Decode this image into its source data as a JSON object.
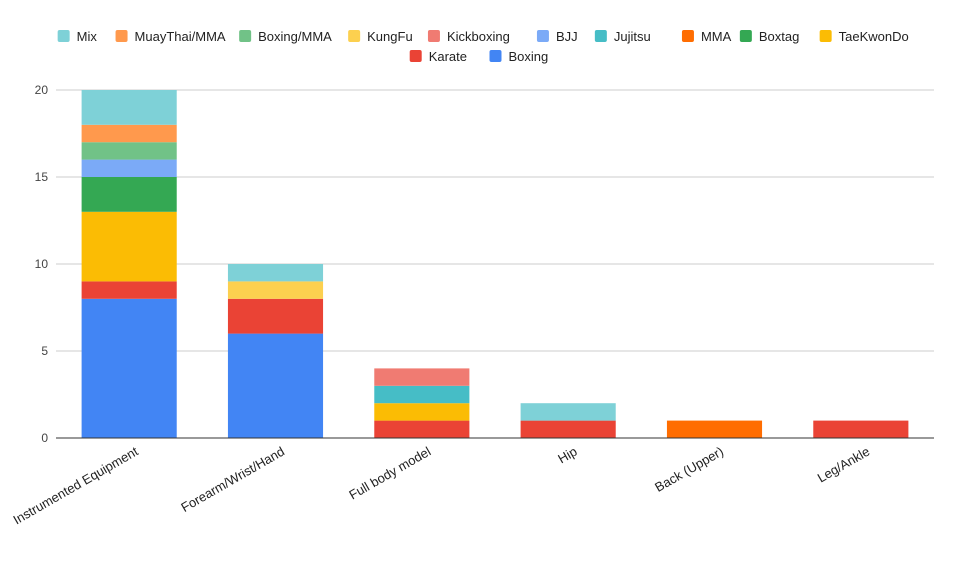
{
  "chart_data": {
    "type": "bar",
    "stacked": true,
    "title": "",
    "xlabel": "",
    "ylabel": "",
    "ylim": [
      0,
      20
    ],
    "yticks": [
      0,
      5,
      10,
      15,
      20
    ],
    "grid": true,
    "legend_position": "top",
    "categories": [
      "Instrumented Equipment",
      "Forearm/Wrist/Hand",
      "Full body model",
      "Hip",
      "Back (Upper)",
      "Leg/Ankle"
    ],
    "series": [
      {
        "name": "Boxing",
        "color": "#4285F4",
        "values": [
          8,
          6,
          0,
          0,
          0,
          0
        ]
      },
      {
        "name": "Karate",
        "color": "#EA4335",
        "values": [
          1,
          2,
          1,
          1,
          0,
          1
        ]
      },
      {
        "name": "TaeKwonDo",
        "color": "#FBBC04",
        "values": [
          4,
          0,
          1,
          0,
          0,
          0
        ]
      },
      {
        "name": "Boxtag",
        "color": "#34A853",
        "values": [
          2,
          0,
          0,
          0,
          0,
          0
        ]
      },
      {
        "name": "MMA",
        "color": "#FF6D01",
        "values": [
          0,
          0,
          0,
          0,
          1,
          0
        ]
      },
      {
        "name": "Jujitsu",
        "color": "#46BDC6",
        "values": [
          0,
          0,
          1,
          0,
          0,
          0
        ]
      },
      {
        "name": "BJJ",
        "color": "#7BAAF7",
        "values": [
          1,
          0,
          0,
          0,
          0,
          0
        ]
      },
      {
        "name": "Kickboxing",
        "color": "#F07B72",
        "values": [
          0,
          0,
          1,
          0,
          0,
          0
        ]
      },
      {
        "name": "KungFu",
        "color": "#FCD04F",
        "values": [
          0,
          1,
          0,
          0,
          0,
          0
        ]
      },
      {
        "name": "Boxing/MMA",
        "color": "#71C287",
        "values": [
          1,
          0,
          0,
          0,
          0,
          0
        ]
      },
      {
        "name": "MuayThai/MMA",
        "color": "#FF994D",
        "values": [
          1,
          0,
          0,
          0,
          0,
          0
        ]
      },
      {
        "name": "Mix",
        "color": "#7ED1D7",
        "values": [
          2,
          1,
          0,
          1,
          0,
          0
        ]
      }
    ],
    "legend_order": [
      "Mix",
      "MuayThai/MMA",
      "Boxing/MMA",
      "KungFu",
      "Kickboxing",
      "BJJ",
      "Jujitsu",
      "MMA",
      "Boxtag",
      "TaeKwonDo",
      "Karate",
      "Boxing"
    ]
  }
}
